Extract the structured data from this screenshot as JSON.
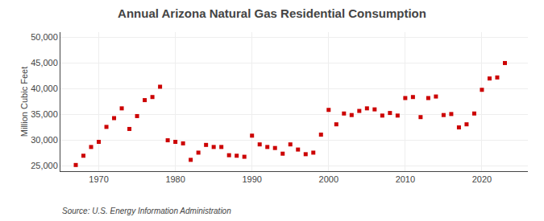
{
  "chart_data": {
    "type": "scatter",
    "title": "Annual Arizona Natural Gas Residential Consumption",
    "ylabel": "Million Cubic Feet",
    "annotations": [
      "Source: U.S. Energy Information Administration"
    ],
    "x": [
      1967,
      1968,
      1969,
      1970,
      1971,
      1972,
      1973,
      1974,
      1975,
      1976,
      1977,
      1978,
      1979,
      1980,
      1981,
      1982,
      1983,
      1984,
      1985,
      1986,
      1987,
      1988,
      1989,
      1990,
      1991,
      1992,
      1993,
      1994,
      1995,
      1996,
      1997,
      1998,
      1999,
      2000,
      2001,
      2002,
      2003,
      2004,
      2005,
      2006,
      2007,
      2008,
      2009,
      2010,
      2011,
      2012,
      2013,
      2014,
      2015,
      2016,
      2017,
      2018,
      2019,
      2020,
      2021,
      2022,
      2023
    ],
    "values": [
      25200,
      27000,
      28700,
      29700,
      32600,
      34300,
      36200,
      32200,
      34700,
      37800,
      38400,
      40400,
      30000,
      29700,
      29400,
      26200,
      27600,
      29100,
      28700,
      28700,
      27100,
      27000,
      26800,
      30900,
      29200,
      28700,
      28500,
      27400,
      29200,
      28200,
      27300,
      27600,
      31100,
      35900,
      33100,
      35200,
      34900,
      35700,
      36200,
      36000,
      34800,
      35300,
      34800,
      38200,
      38400,
      34500,
      38200,
      38500,
      34900,
      35100,
      32500,
      33100,
      35200,
      39800,
      42000,
      42200,
      45000
    ],
    "color": "#cc0000",
    "marker": "square",
    "xlim": [
      1965,
      2026
    ],
    "xticks": [
      1970,
      1980,
      1990,
      2000,
      2010,
      2020
    ],
    "ylim": [
      24000,
      51000
    ],
    "yticks": [
      {
        "value": 25000,
        "label": "25,000"
      },
      {
        "value": 30000,
        "label": "30,000"
      },
      {
        "value": 35000,
        "label": "35,000"
      },
      {
        "value": 40000,
        "label": "40,000"
      },
      {
        "value": 45000,
        "label": "45,000"
      },
      {
        "value": 50000,
        "label": "50,000"
      }
    ],
    "grid": true
  }
}
